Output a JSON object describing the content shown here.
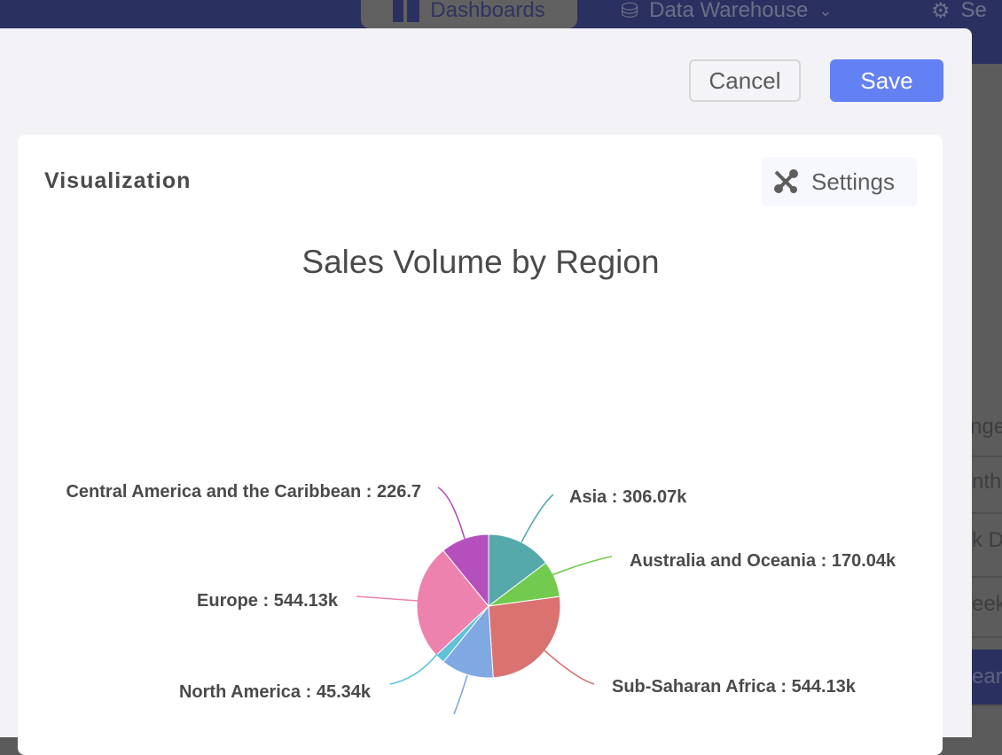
{
  "nav": {
    "items": [
      {
        "label": "Dashboards",
        "icon": "dashboard-icon"
      },
      {
        "label": "Data Warehouse",
        "icon": "database-user-icon"
      },
      {
        "label": "Se",
        "icon": "gear-icon"
      }
    ]
  },
  "background_rows": [
    "nge",
    "nth",
    "k D",
    "eek",
    "ear"
  ],
  "modal": {
    "cancel_label": "Cancel",
    "save_label": "Save"
  },
  "card": {
    "title": "Visualization",
    "settings_label": "Settings",
    "settings_icon": "tools-icon"
  },
  "chart_data": {
    "type": "pie",
    "title": "Sales Volume by Region",
    "slices": [
      {
        "name": "Asia",
        "value": 306.07,
        "label": "Asia : 306.07k",
        "color": "#56a9aa"
      },
      {
        "name": "Australia and Oceania",
        "value": 170.04,
        "label": "Australia and Oceania : 170.04k",
        "color": "#72cb4f"
      },
      {
        "name": "Sub-Saharan Africa",
        "value": 544.13,
        "label": "Sub-Saharan Africa : 544.13k",
        "color": "#da7370"
      },
      {
        "name": "",
        "value": 247,
        "label": "",
        "color": "#80a8e3"
      },
      {
        "name": "North America",
        "value": 45.34,
        "label": "North America : 45.34k",
        "color": "#5fc2d7"
      },
      {
        "name": "Europe",
        "value": 544.13,
        "label": "Europe : 544.13k",
        "color": "#ee82ae"
      },
      {
        "name": "Central America and the Caribbean",
        "value": 226.7,
        "label": "Central America and the Caribbean : 226.7",
        "color": "#b44fbb"
      }
    ]
  }
}
